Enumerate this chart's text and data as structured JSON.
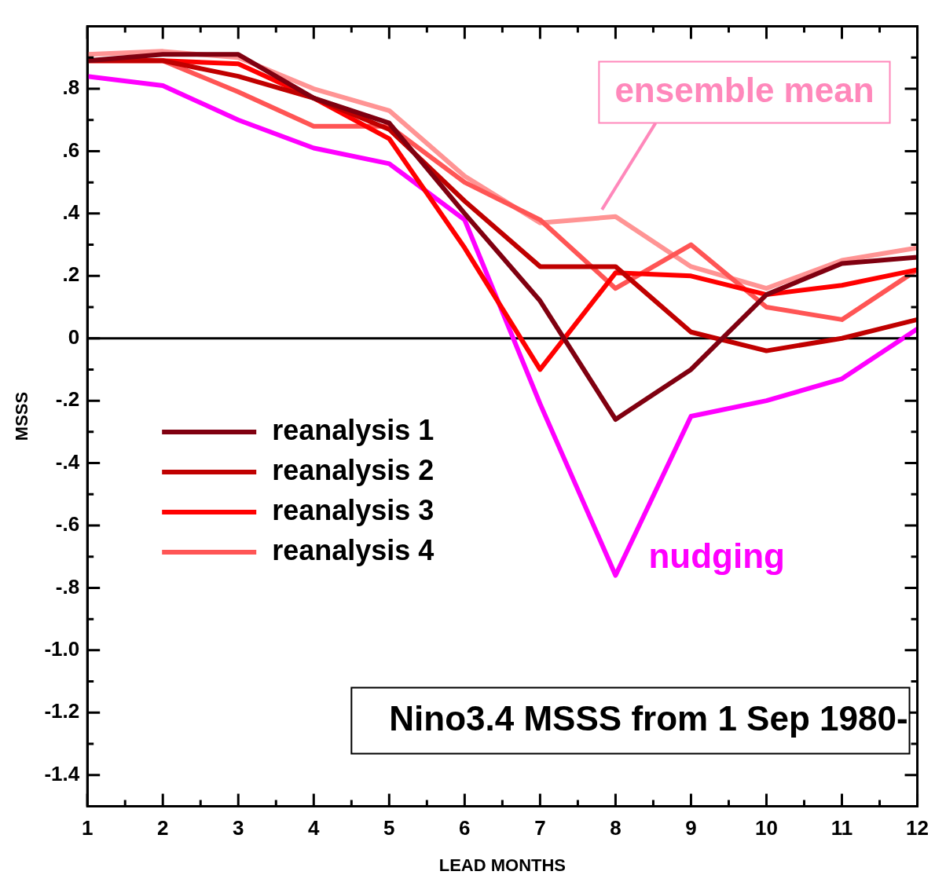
{
  "chart_data": {
    "type": "line",
    "title": "Nino3.4 MSSS from 1 Sep 1980-",
    "xlabel": "LEAD MONTHS",
    "ylabel": "MSSS",
    "x": [
      1,
      2,
      3,
      4,
      5,
      6,
      7,
      8,
      9,
      10,
      11,
      12
    ],
    "series": [
      {
        "name": "reanalysis 1",
        "color": "#800010",
        "values": [
          0.89,
          0.91,
          0.91,
          0.77,
          0.69,
          0.4,
          0.12,
          -0.26,
          -0.1,
          0.14,
          0.24,
          0.26
        ]
      },
      {
        "name": "reanalysis 2",
        "color": "#c00000",
        "values": [
          0.89,
          0.89,
          0.84,
          0.77,
          0.67,
          0.44,
          0.23,
          0.23,
          0.02,
          -0.04,
          0.0,
          0.06
        ]
      },
      {
        "name": "reanalysis 3",
        "color": "#ff0000",
        "values": [
          0.89,
          0.89,
          0.88,
          0.77,
          0.64,
          0.29,
          -0.1,
          0.21,
          0.2,
          0.14,
          0.17,
          0.22
        ]
      },
      {
        "name": "reanalysis 4",
        "color": "#ff5555",
        "values": [
          0.89,
          0.89,
          0.79,
          0.68,
          0.68,
          0.5,
          0.38,
          0.16,
          0.3,
          0.1,
          0.06,
          0.22
        ]
      },
      {
        "color": "#ff9494",
        "values": [
          0.91,
          0.92,
          0.9,
          0.8,
          0.73,
          0.52,
          0.37,
          0.39,
          0.23,
          0.16,
          0.25,
          0.29
        ]
      },
      {
        "color": "#ff00ff",
        "values": [
          0.84,
          0.81,
          0.7,
          0.61,
          0.56,
          0.38,
          -0.21,
          -0.76,
          -0.25,
          -0.2,
          -0.13,
          0.03
        ]
      }
    ],
    "annotations": [
      "ensemble mean",
      {
        "text": "nudging",
        "x": 8,
        "y": -0.76
      }
    ],
    "ref_lines": [
      {
        "axis": "y",
        "value": 0,
        "color": "#000000"
      }
    ],
    "xlim": [
      1,
      12
    ],
    "ylim": [
      -1.5,
      1.0
    ],
    "xticks": [
      1,
      {
        "value": 1.5,
        "label": null
      },
      2,
      {
        "value": 2.5,
        "label": null
      },
      3,
      {
        "value": 3.5,
        "label": null
      },
      4,
      {
        "value": 4.5,
        "label": null
      },
      5,
      {
        "value": 5.5,
        "label": null
      },
      6,
      {
        "value": 6.5,
        "label": null
      },
      7,
      {
        "value": 7.5,
        "label": null
      },
      8,
      {
        "value": 8.5,
        "label": null
      },
      9,
      {
        "value": 9.5,
        "label": null
      },
      10,
      {
        "value": 10.5,
        "label": null
      },
      11,
      {
        "value": 11.5,
        "label": null
      },
      12
    ],
    "yticks": [
      {
        "value": -1.5,
        "label": null
      },
      {
        "value": -1.4,
        "label": "-1.4"
      },
      {
        "value": -1.3,
        "label": null
      },
      {
        "value": -1.2,
        "label": "-1.2"
      },
      {
        "value": -1.1,
        "label": null
      },
      {
        "value": -1.0,
        "label": "-1.0"
      },
      {
        "value": -0.9,
        "label": null
      },
      {
        "value": -0.8,
        "label": "-.8"
      },
      {
        "value": -0.7,
        "label": null
      },
      {
        "value": -0.6,
        "label": "-.6"
      },
      {
        "value": -0.5,
        "label": null
      },
      {
        "value": -0.4,
        "label": "-.4"
      },
      {
        "value": -0.3,
        "label": null
      },
      {
        "value": -0.2,
        "label": "-.2"
      },
      {
        "value": -0.1,
        "label": null
      },
      0,
      {
        "value": 0.1,
        "label": null
      },
      {
        "value": 0.2,
        "label": ".2"
      },
      {
        "value": 0.3,
        "label": null
      },
      {
        "value": 0.4,
        "label": ".4"
      },
      {
        "value": 0.5,
        "label": null
      },
      {
        "value": 0.6,
        "label": ".6"
      },
      {
        "value": 0.7,
        "label": null
      },
      {
        "value": 0.8,
        "label": ".8"
      },
      {
        "value": 0.9,
        "label": null
      }
    ],
    "grid": false,
    "legend": "left",
    "marker": "none",
    "line_style": "solid"
  }
}
